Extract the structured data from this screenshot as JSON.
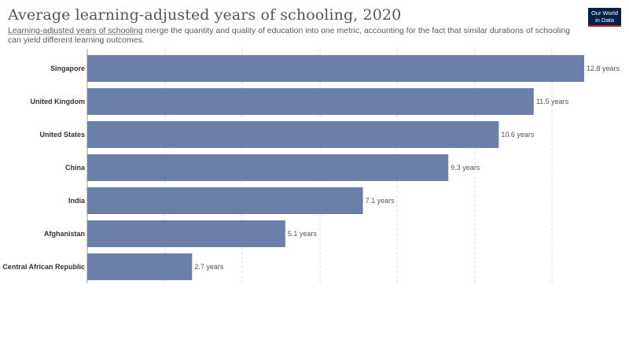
{
  "header": {
    "title": "Average learning-adjusted years of schooling, 2020",
    "subtitle_term": "Learning-adjusted years of schooling",
    "subtitle_rest": " merge the quantity and quality of education into one metric, accounting for the fact that similar durations of schooling can yield different learning outcomes."
  },
  "logo": {
    "line1": "Our World",
    "line2": "in Data"
  },
  "chart_data": {
    "type": "bar",
    "orientation": "horizontal",
    "title": "Average learning-adjusted years of schooling, 2020",
    "categories": [
      "Singapore",
      "United Kingdom",
      "United States",
      "China",
      "India",
      "Afghanistan",
      "Central African Republic"
    ],
    "values": [
      12.8,
      11.5,
      10.6,
      9.3,
      7.1,
      5.1,
      2.7
    ],
    "value_labels": [
      "12.8 years",
      "11.5 years",
      "10.6 years",
      "9.3 years",
      "7.1 years",
      "5.1 years",
      "2.7 years"
    ],
    "unit": "years",
    "xlim": [
      0,
      12.8
    ],
    "grid": true,
    "bar_color": "#6b7fa8"
  }
}
